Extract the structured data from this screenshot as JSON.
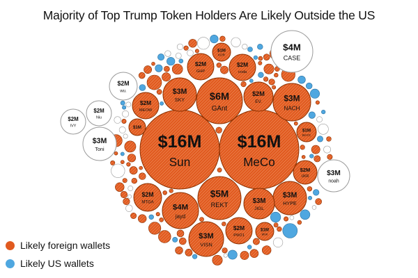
{
  "title": "Majority of Top Trump Token Holders Are Likely Outside the US",
  "colors": {
    "foreign": "#e15a1f",
    "foreign_stroke": "#8a3000",
    "us": "#4fa7e0",
    "other": "#ffffff",
    "other_stroke": "#9a9a9a",
    "hatch": "#f19a6c"
  },
  "legend": [
    {
      "label": "Likely foreign wallets",
      "color": "#e15a1f"
    },
    {
      "label": "Likely US wallets",
      "color": "#4fa7e0"
    }
  ],
  "chart_data": {
    "type": "bubble",
    "title": "Majority of Top Trump Token Holders Are Likely Outside the US",
    "legend": [
      "Likely foreign wallets",
      "Likely US wallets"
    ],
    "holders": [
      {
        "name": "Sun",
        "value": 16,
        "label": "$16M",
        "group": "foreign"
      },
      {
        "name": "MeCo",
        "value": 16,
        "label": "$16M",
        "group": "foreign"
      },
      {
        "name": "GAnt",
        "value": 6,
        "label": "$6M",
        "group": "foreign"
      },
      {
        "name": "REKT",
        "value": 5,
        "label": "$5M",
        "group": "foreign"
      },
      {
        "name": "jayd",
        "value": 4,
        "label": "$4M",
        "group": "foreign"
      },
      {
        "name": "CASE",
        "value": 4,
        "label": "$4M",
        "group": "other"
      },
      {
        "name": "SKY",
        "value": 3,
        "label": "$3M",
        "group": "foreign"
      },
      {
        "name": "NACH",
        "value": 3,
        "label": "$3M",
        "group": "foreign"
      },
      {
        "name": "HYPE",
        "value": 3,
        "label": "$3M",
        "group": "foreign"
      },
      {
        "name": "JIGL",
        "value": 3,
        "label": "$3M",
        "group": "foreign"
      },
      {
        "name": "VISN",
        "value": 3,
        "label": "$3M",
        "group": "foreign"
      },
      {
        "name": "Toni",
        "value": 3,
        "label": "$3M",
        "group": "other"
      },
      {
        "name": "noah",
        "value": 3,
        "label": "$3M",
        "group": "other"
      },
      {
        "name": "GHP",
        "value": 2,
        "label": "$2M",
        "group": "foreign"
      },
      {
        "name": "coda",
        "value": 2,
        "label": "$2M",
        "group": "foreign"
      },
      {
        "name": "EV.",
        "value": 2,
        "label": "$2M",
        "group": "foreign"
      },
      {
        "name": "MEOW",
        "value": 2,
        "label": "$2M",
        "group": "foreign"
      },
      {
        "name": "MTGA",
        "value": 2,
        "label": "$2M",
        "group": "foreign"
      },
      {
        "name": "PW21",
        "value": 2,
        "label": "$2M",
        "group": "foreign"
      },
      {
        "name": "UKR",
        "value": 2,
        "label": "$2M",
        "group": "foreign"
      },
      {
        "name": "wu.",
        "value": 2,
        "label": "$2M",
        "group": "other"
      },
      {
        "name": "Niu",
        "value": 2,
        "label": "$2M",
        "group": "other"
      },
      {
        "name": "IVY",
        "value": 2,
        "label": "$2M",
        "group": "other"
      },
      {
        "name": "KOR",
        "value": 1,
        "label": "$1M",
        "group": "foreign"
      },
      {
        "name": "BAYC",
        "value": 1,
        "label": "$1M",
        "group": "foreign"
      },
      {
        "name": "elon",
        "value": 1,
        "label": "$1M",
        "group": "foreign"
      },
      {
        "name": "",
        "value": 1,
        "label": "$1M",
        "group": "foreign"
      }
    ]
  }
}
